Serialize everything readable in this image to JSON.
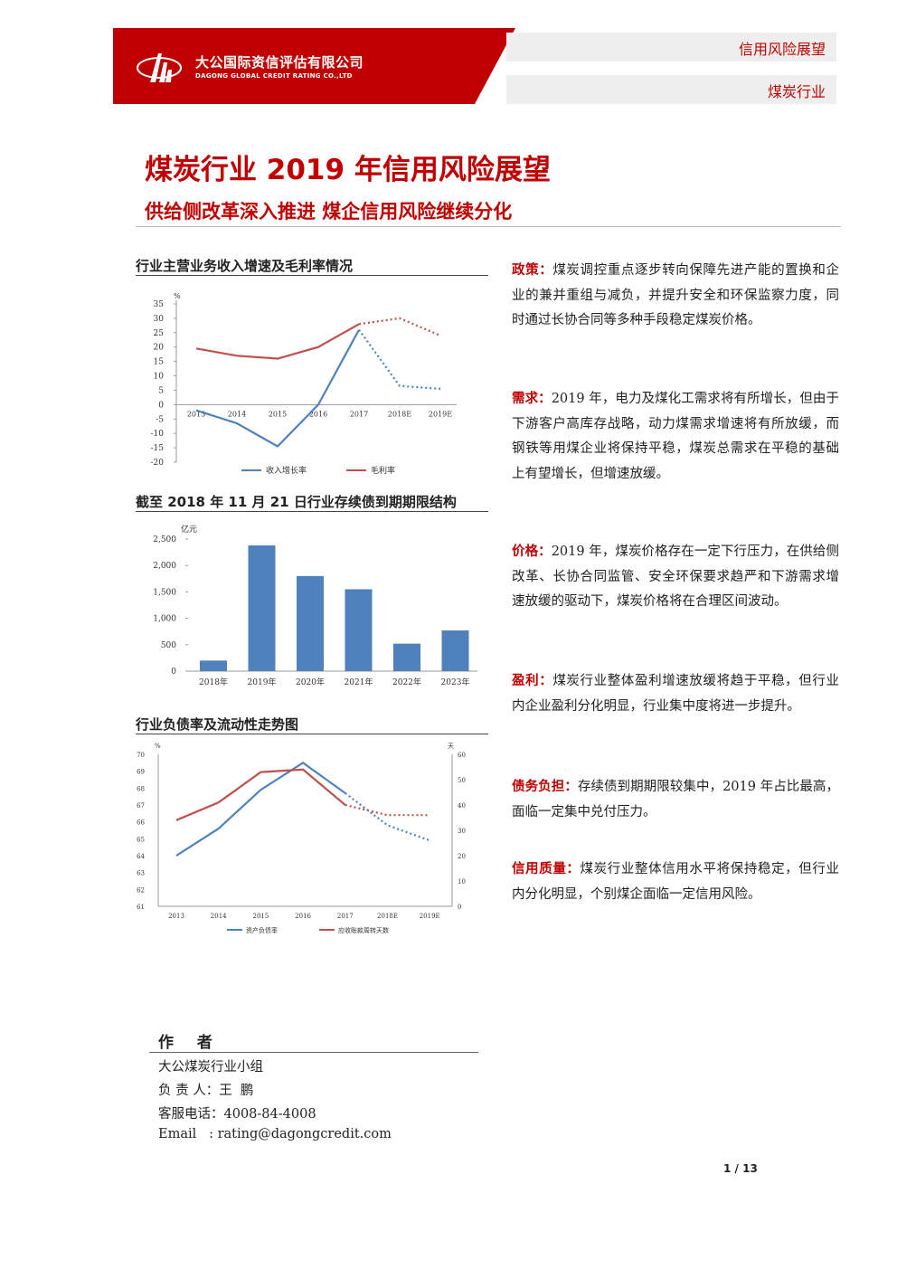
{
  "header": {
    "company_cn": "大公国际资信评估有限公司",
    "company_en": "DAGONG GLOBAL CREDIT RATING CO.,LTD",
    "tag_top": "信用风险展望",
    "tag_bottom": "煤炭行业",
    "brand_color": "#c00000"
  },
  "title": "煤炭行业 2019 年信用风险展望",
  "subtitle": "供给侧改革深入推进 煤企信用风险继续分化",
  "charts": {
    "chart1_title": "行业主营业务收入增速及毛利率情况",
    "chart2_title": "截至 2018 年 11 月 21 日行业存续债到期期限结构",
    "chart3_title": "行业负债率及流动性走势图"
  },
  "chart_data": [
    {
      "type": "line",
      "title": "行业主营业务收入增速及毛利率情况",
      "unit": "%",
      "x": [
        "2013",
        "2014",
        "2015",
        "2016",
        "2017",
        "2018E",
        "2019E"
      ],
      "ylim": [
        -20,
        35
      ],
      "yticks": [
        35,
        30,
        25,
        20,
        15,
        10,
        5,
        0,
        -5,
        -10,
        -15,
        -20
      ],
      "legend_position": "bottom",
      "series": [
        {
          "name": "收入增长率",
          "color": "#4f81bd",
          "values": [
            -2,
            -6.5,
            -14.5,
            0,
            26,
            6.5,
            5.5
          ],
          "dashed_from_index": 4
        },
        {
          "name": "毛利率",
          "color": "#c0504d",
          "values": [
            19.5,
            17,
            16,
            20,
            28,
            30,
            24
          ],
          "dashed_from_index": 4
        }
      ]
    },
    {
      "type": "bar",
      "title": "截至 2018 年 11 月 21 日行业存续债到期期限结构",
      "unit": "亿元",
      "categories": [
        "2018年",
        "2019年",
        "2020年",
        "2021年",
        "2022年",
        "2023年"
      ],
      "values": [
        200,
        2380,
        1800,
        1550,
        520,
        770
      ],
      "ylim": [
        0,
        2500
      ],
      "yticks": [
        "0",
        "500",
        "1,000",
        "1,500",
        "2,000",
        "2,500"
      ],
      "color": "#4f81bd"
    },
    {
      "type": "line",
      "title": "行业负债率及流动性走势图",
      "x": [
        "2013",
        "2014",
        "2015",
        "2016",
        "2017",
        "2018E",
        "2019E"
      ],
      "y_left_unit": "%",
      "y_right_unit": "天",
      "ylim_left": [
        61,
        70
      ],
      "ylim_right": [
        0,
        60
      ],
      "yticks_left": [
        70,
        69,
        68,
        67,
        66,
        65,
        64,
        63,
        62,
        61
      ],
      "yticks_right": [
        60,
        50,
        40,
        30,
        20,
        10,
        0
      ],
      "legend_position": "bottom",
      "series": [
        {
          "name": "资产负债率",
          "axis": "left",
          "color": "#4f81bd",
          "values": [
            64,
            65.6,
            67.9,
            69.5,
            67.7,
            65.8,
            64.9
          ],
          "dashed_from_index": 4
        },
        {
          "name": "应收账款周转天数",
          "axis": "right",
          "color": "#c0504d",
          "values": [
            34,
            41,
            53,
            54,
            40,
            36,
            36
          ],
          "dashed_from_index": 4
        }
      ]
    }
  ],
  "sections": [
    {
      "key": "政策：",
      "text": "煤炭调控重点逐步转向保障先进产能的置换和企业的兼并重组与减负，并提升安全和环保监察力度，同时通过长协合同等多种手段稳定煤炭价格。"
    },
    {
      "key": "需求：",
      "text": "2019 年，电力及煤化工需求将有所增长，但由于下游客户高库存战略，动力煤需求增速将有所放缓，而钢铁等用煤企业将保持平稳，煤炭总需求在平稳的基础上有望增长，但增速放缓。"
    },
    {
      "key": "价格：",
      "text": "2019 年，煤炭价格存在一定下行压力，在供给侧改革、长协合同监管、安全环保要求趋严和下游需求增速放缓的驱动下，煤炭价格将在合理区间波动。"
    },
    {
      "key": "盈利：",
      "text": "煤炭行业整体盈利增速放缓将趋于平稳，但行业内企业盈利分化明显，行业集中度将进一步提升。"
    },
    {
      "key": "债务负担：",
      "text": "存续债到期期限较集中，2019 年占比最高，面临一定集中兑付压力。"
    },
    {
      "key": "信用质量：",
      "text": "煤炭行业整体信用水平将保持稳定，但行业内分化明显，个别煤企面临一定信用风险。"
    }
  ],
  "author": {
    "heading": "作 者",
    "group": "大公煤炭行业小组",
    "lead": "负 责 人：王  鹏",
    "phone": "客服电话：4008-84-4008",
    "email": "Email   : rating@dagongcredit.com"
  },
  "page_num": "1 / 13"
}
